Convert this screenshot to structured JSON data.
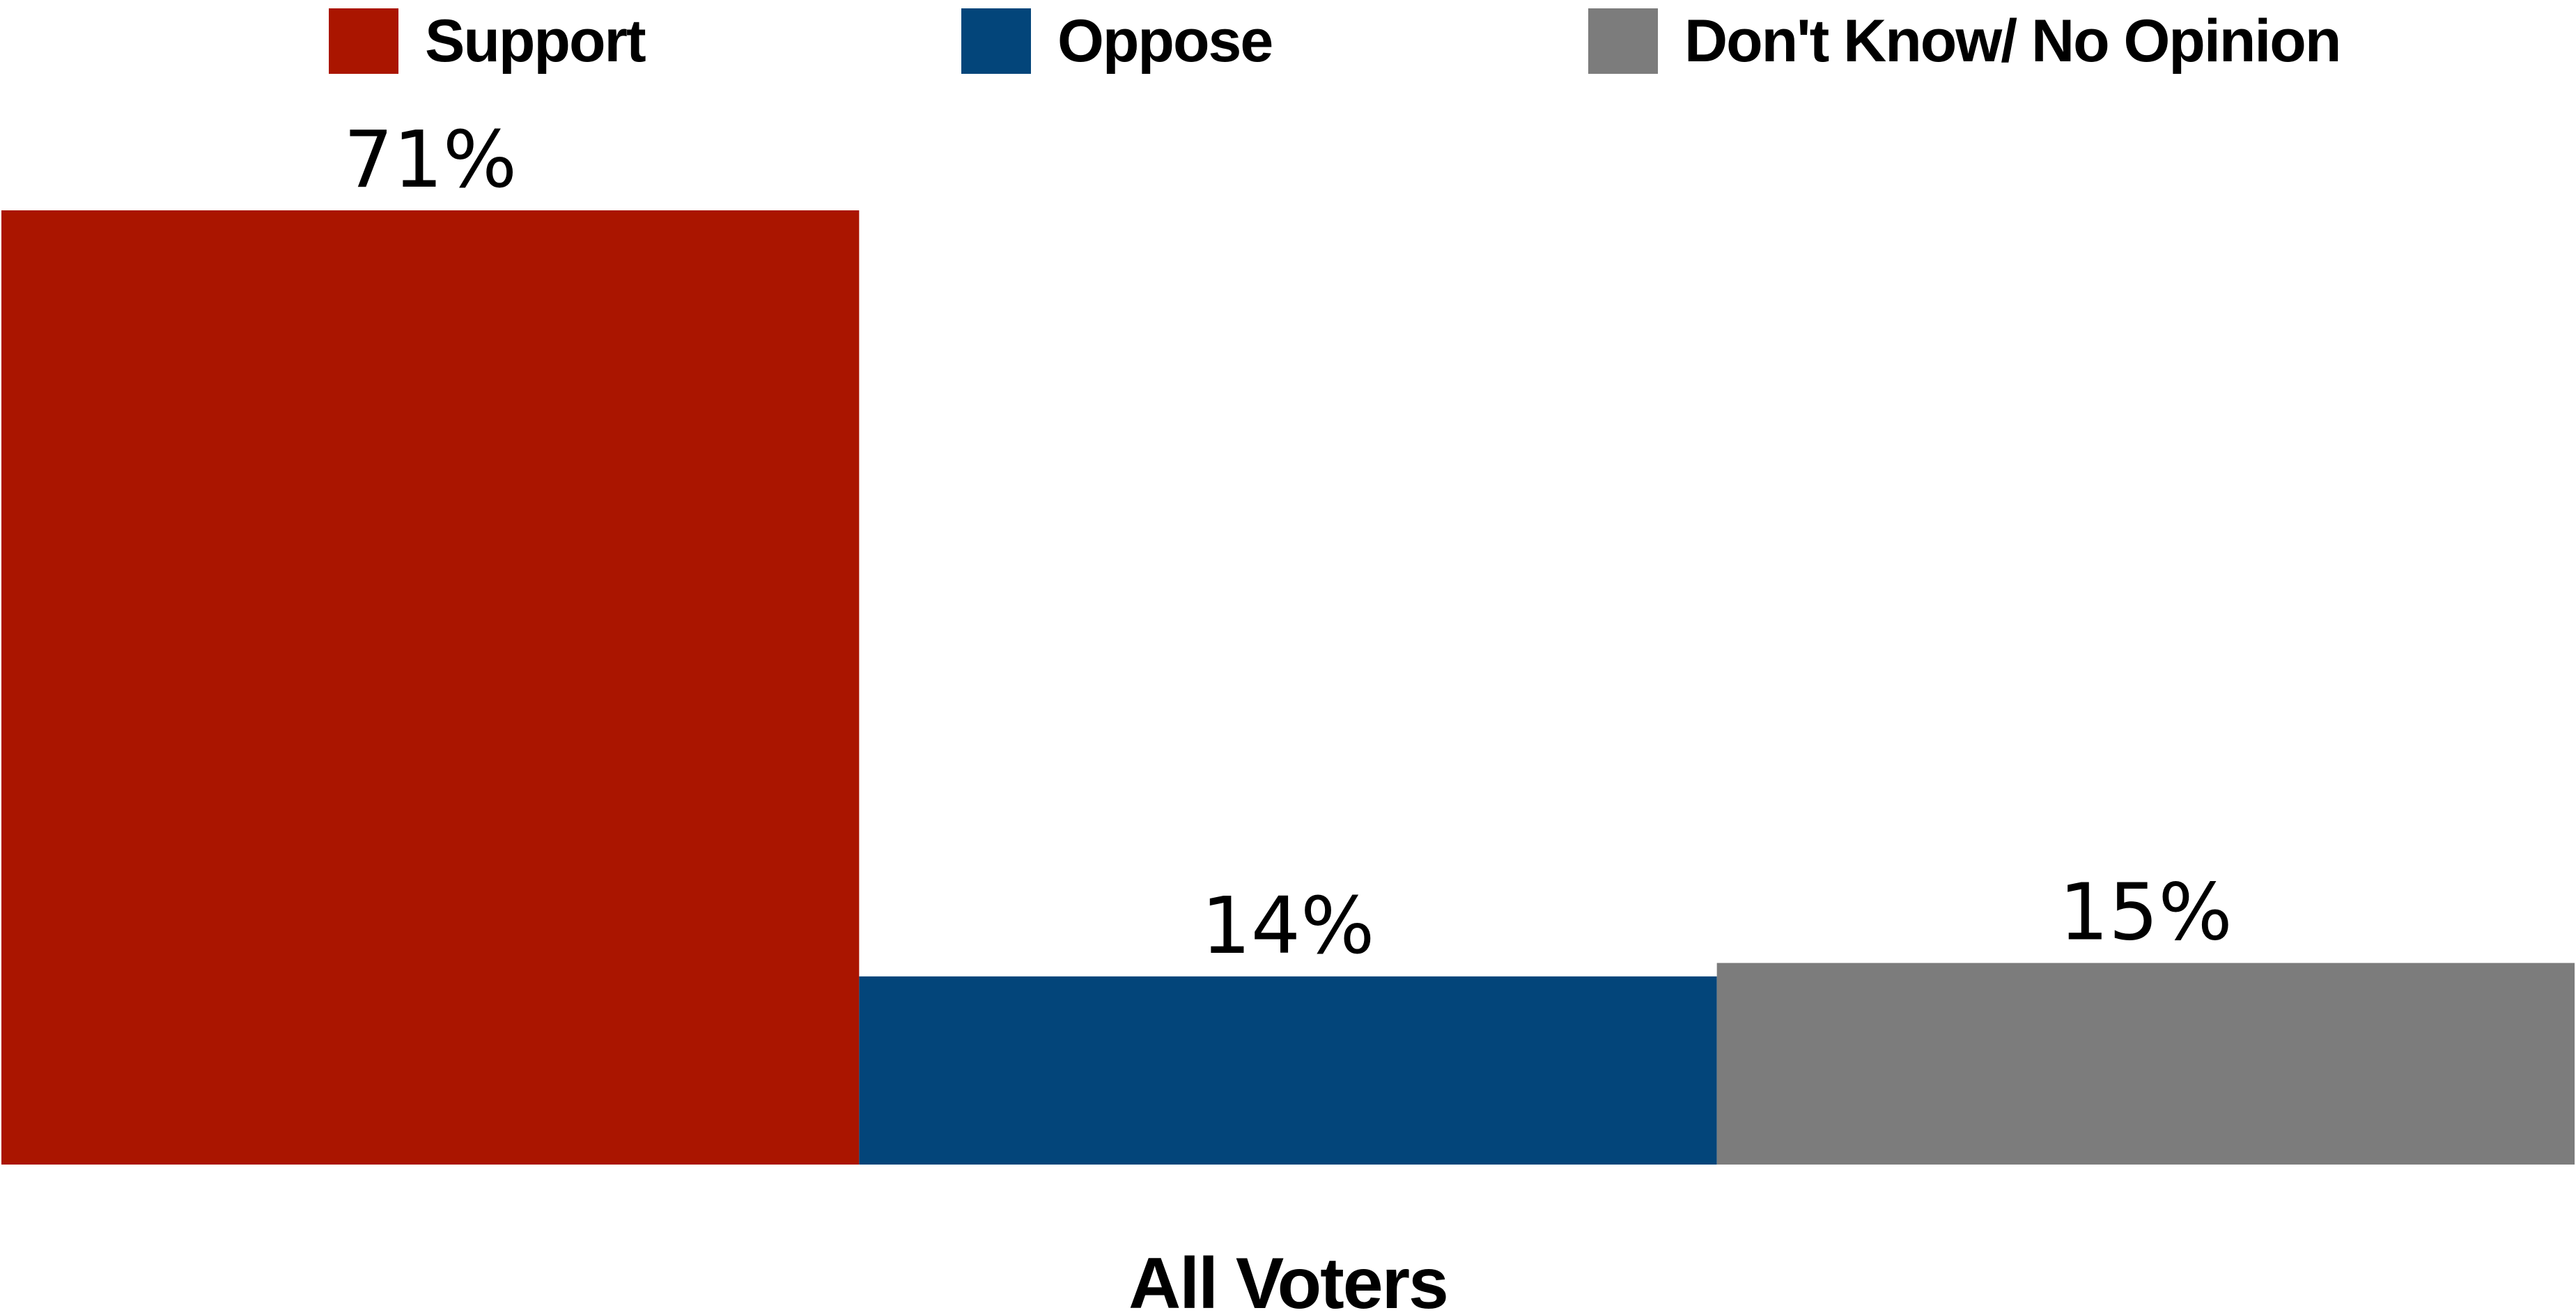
{
  "chart_data": {
    "type": "bar",
    "categories": [
      "All Voters"
    ],
    "series": [
      {
        "name": "Support",
        "values": [
          71
        ],
        "color": "#aa1500",
        "label": "71%"
      },
      {
        "name": "Oppose",
        "values": [
          14
        ],
        "color": "#03457a",
        "label": "14%"
      },
      {
        "name": "Don't Know/ No Opinion",
        "values": [
          15
        ],
        "color": "#7c7c7c",
        "label": "15%"
      }
    ],
    "title": "",
    "xlabel": "",
    "ylabel": "",
    "ylim": [
      0,
      71
    ],
    "grid": false,
    "legend_position": "top",
    "y_axis_visible": false
  }
}
